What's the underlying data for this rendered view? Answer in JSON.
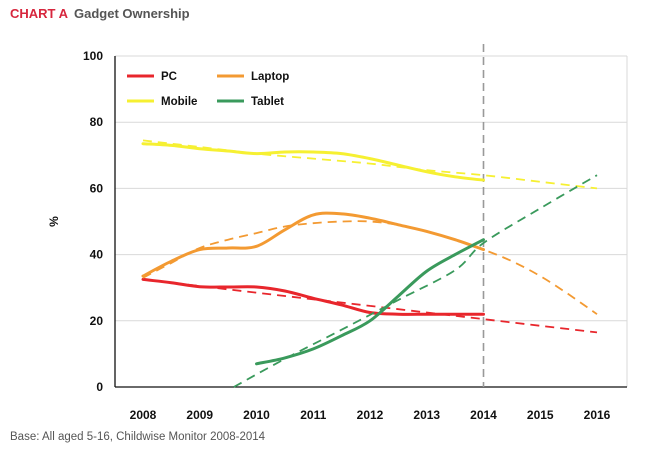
{
  "header": {
    "tag": "CHART A",
    "title": "Gadget Ownership"
  },
  "footer": {
    "source": "Base: All aged 5-16, Childwise Monitor 2008-2014"
  },
  "chart_data": {
    "type": "line",
    "title": "CHART A Gadget Ownership",
    "xlabel": "",
    "ylabel": "%",
    "xlim": [
      2008,
      2016
    ],
    "ylim": [
      0,
      100
    ],
    "y_ticks": [
      0,
      20,
      40,
      60,
      80,
      100
    ],
    "x_ticks": [
      2008,
      2009,
      2010,
      2011,
      2012,
      2013,
      2014,
      2015,
      2016
    ],
    "grid": "horizontal",
    "legend_position": "top-left",
    "marker_line": {
      "x": 2014,
      "style": "dashed",
      "color": "#999999"
    },
    "series": [
      {
        "name": "PC",
        "color": "#e8262c",
        "actual": [
          [
            2008,
            32.5
          ],
          [
            2008.5,
            31.5
          ],
          [
            2009,
            30.3
          ],
          [
            2009.5,
            30.2
          ],
          [
            2010,
            30.2
          ],
          [
            2010.5,
            29
          ],
          [
            2011,
            26.8
          ],
          [
            2011.5,
            24.8
          ],
          [
            2012,
            22.5
          ],
          [
            2012.5,
            22
          ],
          [
            2013,
            22
          ],
          [
            2013.5,
            22
          ],
          [
            2014,
            22
          ]
        ],
        "trend": [
          [
            2008,
            32.5
          ],
          [
            2009,
            30.5
          ],
          [
            2010,
            28.5
          ],
          [
            2011,
            26.5
          ],
          [
            2012,
            24.5
          ],
          [
            2013,
            22.5
          ],
          [
            2014,
            20.5
          ],
          [
            2015,
            18.5
          ],
          [
            2016,
            16.5
          ]
        ]
      },
      {
        "name": "Laptop",
        "color": "#f39a32",
        "actual": [
          [
            2008,
            33.5
          ],
          [
            2008.5,
            38
          ],
          [
            2009,
            41.5
          ],
          [
            2009.5,
            42
          ],
          [
            2010,
            42.5
          ],
          [
            2010.5,
            47.5
          ],
          [
            2011,
            52
          ],
          [
            2011.5,
            52.3
          ],
          [
            2012,
            51
          ],
          [
            2012.5,
            49
          ],
          [
            2013,
            47
          ],
          [
            2013.5,
            44.5
          ],
          [
            2014,
            41.5
          ]
        ],
        "trend": [
          [
            2008,
            33
          ],
          [
            2008.5,
            37.5
          ],
          [
            2009,
            42
          ],
          [
            2009.5,
            44.5
          ],
          [
            2010,
            46.5
          ],
          [
            2010.5,
            48.5
          ],
          [
            2011,
            49.5
          ],
          [
            2011.5,
            50
          ],
          [
            2012,
            50
          ],
          [
            2012.5,
            49
          ],
          [
            2013,
            47
          ],
          [
            2013.5,
            44.5
          ],
          [
            2014,
            41.5
          ],
          [
            2014.5,
            38
          ],
          [
            2015,
            33.5
          ],
          [
            2015.5,
            28
          ],
          [
            2016,
            22
          ]
        ]
      },
      {
        "name": "Mobile",
        "color": "#f6f032",
        "actual": [
          [
            2008,
            73.5
          ],
          [
            2008.5,
            73
          ],
          [
            2009,
            72
          ],
          [
            2009.5,
            71.3
          ],
          [
            2010,
            70.5
          ],
          [
            2010.5,
            71
          ],
          [
            2011,
            71
          ],
          [
            2011.5,
            70.5
          ],
          [
            2012,
            69
          ],
          [
            2012.5,
            67
          ],
          [
            2013,
            65
          ],
          [
            2013.5,
            63.5
          ],
          [
            2014,
            62.5
          ]
        ],
        "trend": [
          [
            2008,
            74.5
          ],
          [
            2009,
            72.5
          ],
          [
            2010,
            70.5
          ],
          [
            2011,
            69
          ],
          [
            2012,
            67.5
          ],
          [
            2013,
            65.5
          ],
          [
            2014,
            64
          ],
          [
            2015,
            62
          ],
          [
            2016,
            60
          ]
        ]
      },
      {
        "name": "Tablet",
        "color": "#3a9a5c",
        "actual": [
          [
            2010,
            7
          ],
          [
            2010.5,
            8.8
          ],
          [
            2011,
            11.5
          ],
          [
            2011.5,
            15.5
          ],
          [
            2012,
            20
          ],
          [
            2012.5,
            27.5
          ],
          [
            2013,
            35
          ],
          [
            2013.5,
            40
          ],
          [
            2014,
            44.5
          ]
        ],
        "trend": [
          [
            2009.6,
            0
          ],
          [
            2010.5,
            8.5
          ],
          [
            2011.5,
            17.3
          ],
          [
            2012.5,
            26.3
          ],
          [
            2013.5,
            35.3
          ],
          [
            2014,
            43.5
          ],
          [
            2015,
            54
          ],
          [
            2016,
            64
          ]
        ]
      }
    ]
  }
}
